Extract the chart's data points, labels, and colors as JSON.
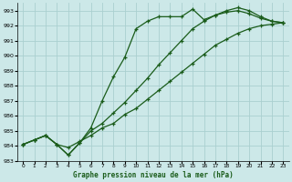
{
  "title": "Graphe pression niveau de la mer (hPa)",
  "bg_color": "#cce8e8",
  "grid_color": "#aad0d0",
  "line_color": "#1a5c1a",
  "ylim": [
    983,
    993.5
  ],
  "xlim": [
    -0.5,
    23.5
  ],
  "yticks": [
    983,
    984,
    985,
    986,
    987,
    988,
    989,
    990,
    991,
    992,
    993
  ],
  "xticks": [
    0,
    1,
    2,
    3,
    4,
    5,
    6,
    7,
    8,
    9,
    10,
    11,
    12,
    13,
    14,
    15,
    16,
    17,
    18,
    19,
    20,
    21,
    22,
    23
  ],
  "series1": {
    "x": [
      0,
      1,
      2,
      3,
      4,
      5,
      6,
      7,
      8,
      9,
      10,
      11,
      12,
      13,
      14,
      15,
      16,
      17,
      18,
      19,
      20,
      21,
      22,
      23
    ],
    "y": [
      984.1,
      984.4,
      984.7,
      984.1,
      983.9,
      984.3,
      984.7,
      985.2,
      985.5,
      986.1,
      986.5,
      987.1,
      987.7,
      988.3,
      988.9,
      989.5,
      990.1,
      990.7,
      991.1,
      991.5,
      991.8,
      992.0,
      992.1,
      992.2
    ]
  },
  "series2": {
    "x": [
      0,
      1,
      2,
      3,
      4,
      5,
      6,
      7,
      8,
      9,
      10,
      11,
      12,
      13,
      14,
      15,
      16,
      17,
      18,
      19,
      20,
      21,
      22,
      23
    ],
    "y": [
      984.1,
      984.4,
      984.7,
      984.1,
      983.4,
      984.2,
      985.0,
      985.5,
      986.2,
      986.9,
      987.7,
      988.5,
      989.4,
      990.2,
      991.0,
      991.8,
      992.3,
      992.7,
      992.9,
      993.0,
      992.8,
      992.5,
      992.3,
      992.2
    ]
  },
  "series3": {
    "x": [
      0,
      1,
      2,
      3,
      4,
      5,
      6,
      7,
      8,
      9,
      10,
      11,
      12,
      13,
      14,
      15,
      16,
      17,
      18,
      19,
      20,
      21,
      22,
      23
    ],
    "y": [
      984.1,
      984.4,
      984.7,
      984.1,
      983.4,
      984.2,
      985.2,
      987.0,
      988.6,
      989.9,
      991.8,
      992.3,
      992.6,
      992.6,
      992.6,
      993.1,
      992.4,
      992.7,
      993.0,
      993.2,
      993.0,
      992.6,
      992.3,
      992.2
    ]
  }
}
